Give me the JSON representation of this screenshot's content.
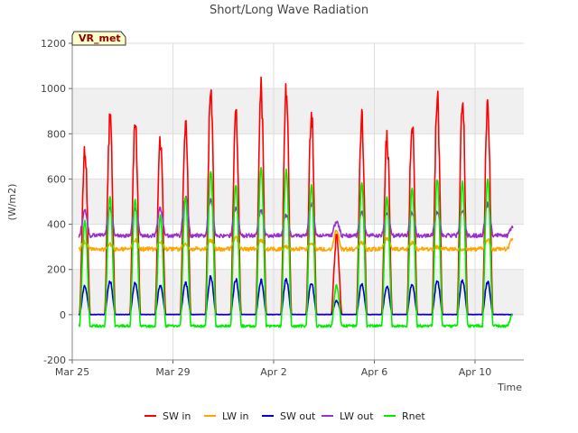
{
  "chart_data": {
    "type": "line",
    "title": "Short/Long Wave Radiation",
    "xlabel": "Time",
    "ylabel": "(W/m2)",
    "ylim": [
      -200,
      1200
    ],
    "yticks": [
      -200,
      0,
      200,
      400,
      600,
      800,
      1000,
      1200
    ],
    "xlim_days": [
      0,
      18
    ],
    "xticks": [
      {
        "day": 0,
        "label": "Mar 25"
      },
      {
        "day": 4,
        "label": "Mar 29"
      },
      {
        "day": 8,
        "label": "Apr 2"
      },
      {
        "day": 12,
        "label": "Apr 6"
      },
      {
        "day": 16,
        "label": "Apr 10"
      }
    ],
    "grid": true,
    "legend_position": "bottom",
    "badge": "VR_met",
    "days": [
      "Mar 25",
      "Mar 26",
      "Mar 27",
      "Mar 28",
      "Mar 29",
      "Mar 30",
      "Mar 31",
      "Apr 1",
      "Apr 2",
      "Apr 3",
      "Apr 4",
      "Apr 5",
      "Apr 6",
      "Apr 7",
      "Apr 8",
      "Apr 9",
      "Apr 10",
      "Apr 11"
    ],
    "series": [
      {
        "name": "SW in",
        "color": "#ff0000",
        "daily_peak": [
          740,
          865,
          860,
          770,
          860,
          1010,
          905,
          990,
          1000,
          890,
          340,
          875,
          790,
          860,
          950,
          960,
          935,
          0
        ],
        "night": 0
      },
      {
        "name": "LW in",
        "color": "#ffa500",
        "daily_peak": [
          320,
          310,
          330,
          320,
          315,
          330,
          340,
          330,
          300,
          320,
          370,
          320,
          340,
          320,
          300,
          290,
          330,
          340
        ],
        "night": 290
      },
      {
        "name": "SW out",
        "color": "#0000cc",
        "daily_peak": [
          125,
          145,
          140,
          130,
          140,
          165,
          155,
          150,
          155,
          140,
          60,
          135,
          125,
          135,
          150,
          150,
          145,
          0
        ],
        "night": 0
      },
      {
        "name": "LW out",
        "color": "#9932cc",
        "daily_peak": [
          460,
          470,
          470,
          470,
          520,
          510,
          470,
          460,
          440,
          490,
          410,
          450,
          450,
          450,
          450,
          460,
          490,
          390
        ],
        "night": 350
      },
      {
        "name": "Rnet",
        "color": "#00ee00",
        "daily_peak": [
          415,
          520,
          510,
          440,
          520,
          635,
          575,
          650,
          640,
          570,
          130,
          580,
          520,
          560,
          600,
          585,
          600,
          0
        ],
        "night": -50
      }
    ]
  }
}
